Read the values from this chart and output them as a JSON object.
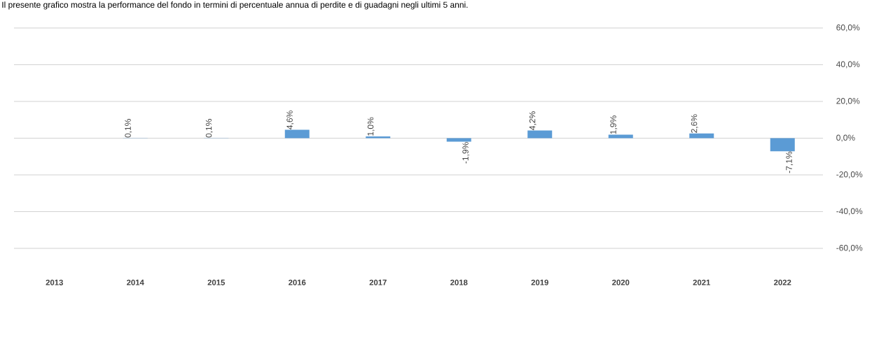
{
  "chart_data": {
    "type": "bar",
    "title": "Il presente grafico mostra la performance del fondo in termini di percentuale annua di perdite e di guadagni negli ultimi 5 anni.",
    "categories": [
      "2013",
      "2014",
      "2015",
      "2016",
      "2017",
      "2018",
      "2019",
      "2020",
      "2021",
      "2022"
    ],
    "values": [
      null,
      0.1,
      0.1,
      4.6,
      1.0,
      -1.9,
      4.2,
      1.9,
      2.6,
      -7.1
    ],
    "value_labels": [
      null,
      "0,1%",
      "0,1%",
      "4,6%",
      "1,0%",
      "-1,9%",
      "4,2%",
      "1,9%",
      "2,6%",
      "-7,1%"
    ],
    "color": "#5b9bd5",
    "grid": "y",
    "ylim": [
      -60,
      60
    ],
    "yticks": [
      {
        "value": -60,
        "label": "-60,0%"
      },
      {
        "value": -40,
        "label": "-40,0%"
      },
      {
        "value": -20,
        "label": "-20,0%"
      },
      {
        "value": 0,
        "label": "0,0%"
      },
      {
        "value": 20,
        "label": "20,0%"
      },
      {
        "value": 40,
        "label": "40,0%"
      },
      {
        "value": 60,
        "label": "60,0%"
      }
    ]
  }
}
